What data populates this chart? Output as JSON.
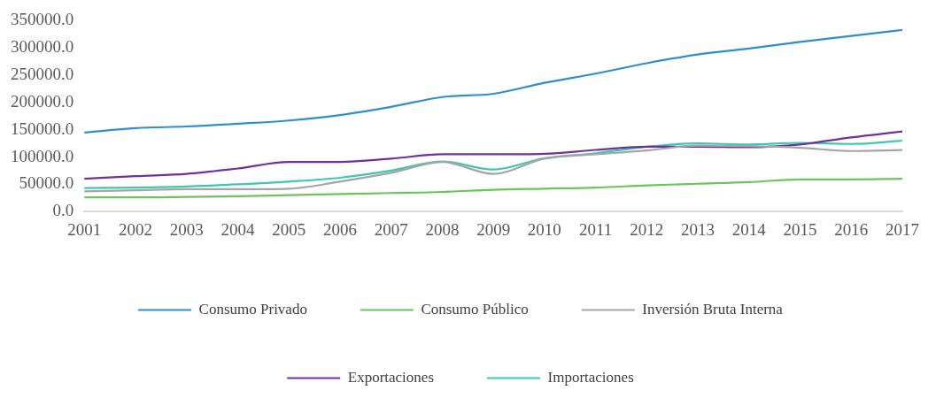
{
  "chart_data": {
    "type": "line",
    "categories": [
      "2001",
      "2002",
      "2003",
      "2004",
      "2005",
      "2006",
      "2007",
      "2008",
      "2009",
      "2010",
      "2011",
      "2012",
      "2013",
      "2014",
      "2015",
      "2016",
      "2017"
    ],
    "ylim": [
      0,
      350000
    ],
    "yticks": [
      {
        "value": 0,
        "label": "0.0"
      },
      {
        "value": 50000,
        "label": "50000.0"
      },
      {
        "value": 100000,
        "label": "100000.0"
      },
      {
        "value": 150000,
        "label": "150000.0"
      },
      {
        "value": 200000,
        "label": "200000.0"
      },
      {
        "value": 250000,
        "label": "250000.0"
      },
      {
        "value": 300000,
        "label": "300000.0"
      },
      {
        "value": 350000,
        "label": "350000.0"
      }
    ],
    "grid": false,
    "legend": "bottom",
    "marker": "none",
    "line_style": "solid",
    "series": [
      {
        "name": "Consumo Privado",
        "color": "#2e8fcf",
        "values": [
          145000,
          153000,
          156000,
          161000,
          167000,
          177000,
          192000,
          210000,
          216000,
          236000,
          253000,
          272000,
          288000,
          299000,
          311000,
          322000,
          333000
        ]
      },
      {
        "name": "Consumo Público",
        "color": "#6cc55a",
        "values": [
          26000,
          26000,
          27000,
          28000,
          30000,
          32000,
          34000,
          36000,
          40000,
          42000,
          44000,
          48000,
          51000,
          54000,
          59000,
          59000,
          60000
        ]
      },
      {
        "name": "Inversión Bruta Interna",
        "color": "#a5a5a5",
        "values": [
          37000,
          39000,
          41000,
          41000,
          42000,
          55000,
          71000,
          91000,
          69000,
          97000,
          105000,
          112000,
          121000,
          120000,
          117000,
          111000,
          113000
        ]
      },
      {
        "name": "Exportaciones",
        "color": "#7030a0",
        "values": [
          60000,
          65000,
          69000,
          79000,
          91000,
          91000,
          97000,
          105000,
          105000,
          106000,
          113000,
          119000,
          119000,
          118000,
          123000,
          136000,
          147000
        ]
      },
      {
        "name": "Importaciones",
        "color": "#3cc8b0",
        "values": [
          43000,
          44000,
          46000,
          50000,
          55000,
          62000,
          75000,
          92000,
          77000,
          98000,
          107000,
          119000,
          125000,
          123000,
          126000,
          124000,
          130000
        ]
      }
    ]
  }
}
